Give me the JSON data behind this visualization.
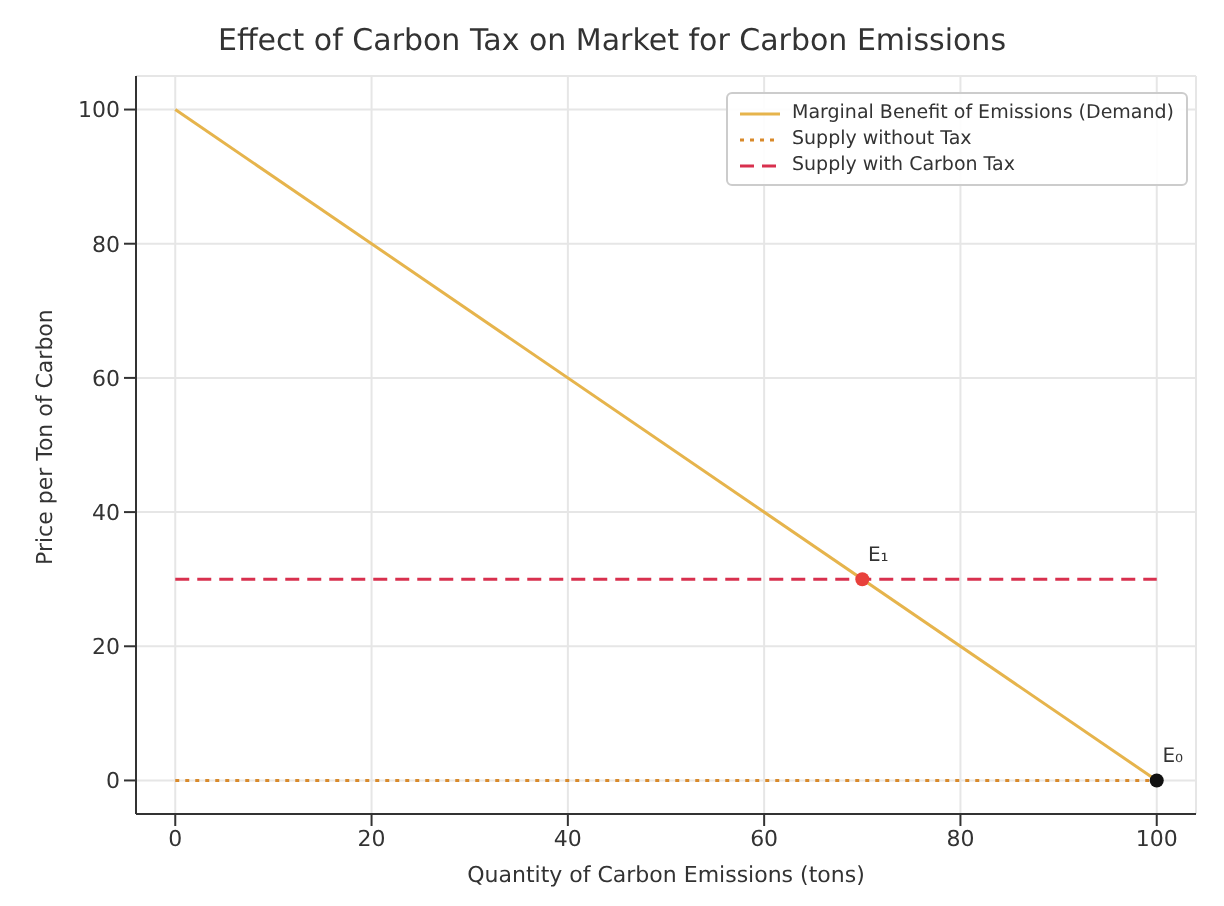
{
  "chart_data": {
    "type": "line",
    "title": "Effect of Carbon Tax on Market for Carbon Emissions",
    "xlabel": "Quantity of Carbon Emissions (tons)",
    "ylabel": "Price per Ton of Carbon",
    "xlim": [
      -4,
      104
    ],
    "xticks": [
      0,
      20,
      40,
      60,
      80,
      100
    ],
    "ylim": [
      -5,
      105
    ],
    "yticks": [
      0,
      20,
      40,
      60,
      80,
      100
    ],
    "grid": true,
    "legend": "top right",
    "series": [
      {
        "name": "Marginal Benefit of Emissions (Demand)",
        "color": "#e6b44c",
        "line_style": "solid",
        "marker": "none",
        "x": [
          0,
          100
        ],
        "values": [
          100,
          0
        ]
      },
      {
        "name": "Supply without Tax",
        "color": "#d98a2b",
        "line_style": "dotted",
        "marker": "none",
        "x": [
          0,
          100
        ],
        "values": [
          0,
          0
        ]
      },
      {
        "name": "Supply with Carbon Tax",
        "color": "#d8304e",
        "line_style": "dashed",
        "marker": "none",
        "x": [
          0,
          100
        ],
        "values": [
          30,
          30
        ]
      },
      {
        "type": "scatter",
        "color": "#e8413c",
        "marker": "circle",
        "x": [
          70
        ],
        "values": [
          30
        ]
      },
      {
        "type": "scatter",
        "color": "#111111",
        "marker": "circle",
        "x": [
          100
        ],
        "values": [
          0
        ]
      }
    ],
    "annotations": [
      {
        "text": "E₁",
        "x": 70,
        "y": 30
      },
      {
        "text": "E₀",
        "x": 100,
        "y": 0
      }
    ]
  }
}
